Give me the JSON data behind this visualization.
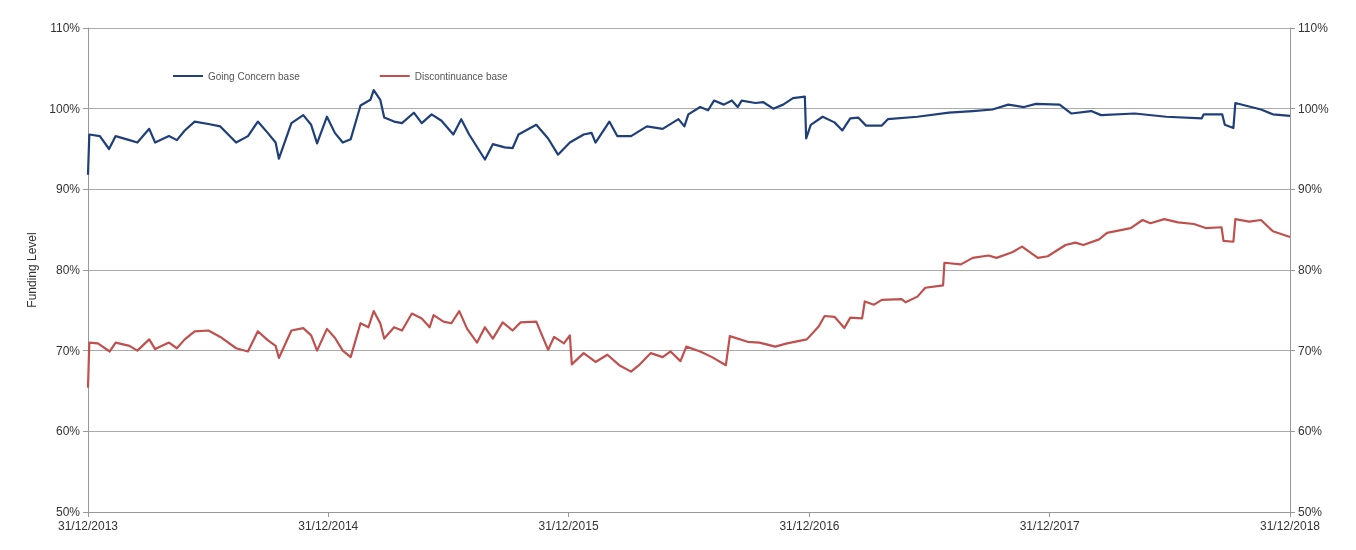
{
  "chart_data": {
    "type": "line",
    "ylabel": "Funding Level",
    "xlim": [
      "2013-12-31",
      "2018-12-31"
    ],
    "xticks": [
      {
        "value": "2013-12-31",
        "label": "31/12/2013"
      },
      {
        "value": "2014-12-31",
        "label": "31/12/2014"
      },
      {
        "value": "2015-12-31",
        "label": "31/12/2015"
      },
      {
        "value": "2016-12-31",
        "label": "31/12/2016"
      },
      {
        "value": "2017-12-31",
        "label": "31/12/2017"
      },
      {
        "value": "2018-12-31",
        "label": "31/12/2018"
      }
    ],
    "ylim": [
      50,
      110
    ],
    "yticks": [
      {
        "value": 50,
        "label": "50%"
      },
      {
        "value": 60,
        "label": "60%"
      },
      {
        "value": 70,
        "label": "70%"
      },
      {
        "value": 80,
        "label": "80%"
      },
      {
        "value": 90,
        "label": "90%"
      },
      {
        "value": 100,
        "label": "100%"
      },
      {
        "value": 110,
        "label": "110%"
      }
    ],
    "y2lim": [
      50,
      110
    ],
    "y2ticks": [
      {
        "value": 50,
        "label": "50%"
      },
      {
        "value": 60,
        "label": "60%"
      },
      {
        "value": 70,
        "label": "70%"
      },
      {
        "value": 80,
        "label": "80%"
      },
      {
        "value": 90,
        "label": "90%"
      },
      {
        "value": 100,
        "label": "100%"
      },
      {
        "value": 110,
        "label": "110%"
      }
    ],
    "grid": "y",
    "legend": "top left",
    "marker": "none",
    "line_style": "solid",
    "series": [
      {
        "name": "Going Concern base",
        "color": "#1f3f7a",
        "x": [
          "2013-12-31",
          "2014-01-02",
          "2014-01-18",
          "2014-02-01",
          "2014-02-11",
          "2014-03-04",
          "2014-03-16",
          "2014-04-03",
          "2014-04-12",
          "2014-05-03",
          "2014-05-15",
          "2014-05-27",
          "2014-06-11",
          "2014-07-02",
          "2014-07-20",
          "2014-08-13",
          "2014-08-31",
          "2014-09-15",
          "2014-09-30",
          "2014-10-12",
          "2014-10-17",
          "2014-11-05",
          "2014-11-23",
          "2014-12-05",
          "2014-12-14",
          "2014-12-29",
          "2015-01-10",
          "2015-01-22",
          "2015-02-03",
          "2015-02-18",
          "2015-03-05",
          "2015-03-10",
          "2015-03-20",
          "2015-03-26",
          "2015-04-10",
          "2015-04-22",
          "2015-05-10",
          "2015-05-22",
          "2015-06-06",
          "2015-06-21",
          "2015-07-09",
          "2015-07-21",
          "2015-08-02",
          "2015-08-26",
          "2015-09-07",
          "2015-09-25",
          "2015-10-07",
          "2015-10-16",
          "2015-11-12",
          "2015-11-30",
          "2015-12-15",
          "2016-01-02",
          "2016-01-23",
          "2016-02-04",
          "2016-02-10",
          "2016-03-02",
          "2016-03-14",
          "2016-04-04",
          "2016-04-28",
          "2016-05-22",
          "2016-06-15",
          "2016-06-24",
          "2016-06-30",
          "2016-07-18",
          "2016-07-30",
          "2016-08-08",
          "2016-08-23",
          "2016-09-04",
          "2016-09-13",
          "2016-09-19",
          "2016-10-10",
          "2016-10-22",
          "2016-11-06",
          "2016-11-21",
          "2016-12-06",
          "2016-12-24",
          "2016-12-26",
          "2017-01-02",
          "2017-01-20",
          "2017-02-07",
          "2017-02-19",
          "2017-03-03",
          "2017-03-15",
          "2017-03-27",
          "2017-04-20",
          "2017-04-29",
          "2017-06-13",
          "2017-07-31",
          "2017-09-05",
          "2017-10-05",
          "2017-10-29",
          "2017-11-22",
          "2017-12-10",
          "2018-01-15",
          "2018-02-02",
          "2018-03-04",
          "2018-03-19",
          "2018-05-09",
          "2018-06-26",
          "2018-08-19",
          "2018-08-22",
          "2018-09-19",
          "2018-09-23",
          "2018-10-06",
          "2018-10-09",
          "2018-11-17",
          "2018-12-05",
          "2018-12-31"
        ],
        "values": [
          91.8,
          96.8,
          96.6,
          95.0,
          96.6,
          96.1,
          95.8,
          97.5,
          95.8,
          96.6,
          96.1,
          97.3,
          98.4,
          98.1,
          97.8,
          95.8,
          96.6,
          98.4,
          97.0,
          95.8,
          93.8,
          98.2,
          99.2,
          98.0,
          95.7,
          99.0,
          97.0,
          95.8,
          96.2,
          100.4,
          101.1,
          102.3,
          101.1,
          98.9,
          98.4,
          98.2,
          99.5,
          98.2,
          99.3,
          98.5,
          96.8,
          98.7,
          96.8,
          93.7,
          95.6,
          95.2,
          95.1,
          96.8,
          98.0,
          96.3,
          94.3,
          95.8,
          96.8,
          97.0,
          95.8,
          98.4,
          96.6,
          96.6,
          97.8,
          97.5,
          98.7,
          97.8,
          99.3,
          100.2,
          99.8,
          101.0,
          100.5,
          101.0,
          100.2,
          101.0,
          100.7,
          100.8,
          100.0,
          100.5,
          101.3,
          101.5,
          96.3,
          98.0,
          99.0,
          98.3,
          97.3,
          98.8,
          98.9,
          97.9,
          97.9,
          98.7,
          99.0,
          99.5,
          99.7,
          99.9,
          100.5,
          100.2,
          100.6,
          100.5,
          99.4,
          99.7,
          99.2,
          99.4,
          99.0,
          98.8,
          99.3,
          99.3,
          98.0,
          97.6,
          100.7,
          99.9,
          99.3,
          99.1
        ]
      },
      {
        "name": "Discontinuance base",
        "color": "#c0504d",
        "x": [
          "2013-12-31",
          "2014-01-02",
          "2014-01-15",
          "2014-02-02",
          "2014-02-11",
          "2014-03-04",
          "2014-03-16",
          "2014-04-03",
          "2014-04-12",
          "2014-05-03",
          "2014-05-15",
          "2014-05-27",
          "2014-06-11",
          "2014-07-02",
          "2014-07-20",
          "2014-08-13",
          "2014-08-31",
          "2014-09-15",
          "2014-09-30",
          "2014-10-12",
          "2014-10-17",
          "2014-11-05",
          "2014-11-23",
          "2014-12-05",
          "2014-12-14",
          "2014-12-29",
          "2015-01-10",
          "2015-01-22",
          "2015-02-03",
          "2015-02-18",
          "2015-03-02",
          "2015-03-10",
          "2015-03-20",
          "2015-03-26",
          "2015-04-10",
          "2015-04-22",
          "2015-05-07",
          "2015-05-22",
          "2015-06-03",
          "2015-06-09",
          "2015-06-24",
          "2015-07-06",
          "2015-07-18",
          "2015-07-30",
          "2015-08-14",
          "2015-08-26",
          "2015-09-07",
          "2015-09-22",
          "2015-10-07",
          "2015-10-19",
          "2015-11-12",
          "2015-11-30",
          "2015-12-09",
          "2015-12-24",
          "2016-01-02",
          "2016-01-05",
          "2016-01-23",
          "2016-02-10",
          "2016-02-28",
          "2016-03-17",
          "2016-04-04",
          "2016-04-16",
          "2016-05-04",
          "2016-05-22",
          "2016-06-03",
          "2016-06-18",
          "2016-06-27",
          "2016-07-18",
          "2016-08-05",
          "2016-08-26",
          "2016-09-01",
          "2016-09-28",
          "2016-10-16",
          "2016-11-09",
          "2016-11-27",
          "2016-12-27",
          "2017-01-14",
          "2017-01-23",
          "2017-02-07",
          "2017-02-22",
          "2017-03-03",
          "2017-03-21",
          "2017-03-25",
          "2017-04-08",
          "2017-04-20",
          "2017-05-20",
          "2017-05-26",
          "2017-06-13",
          "2017-06-25",
          "2017-07-22",
          "2017-07-24",
          "2017-08-18",
          "2017-09-05",
          "2017-09-29",
          "2017-10-11",
          "2017-11-04",
          "2017-11-19",
          "2017-12-13",
          "2017-12-28",
          "2018-01-24",
          "2018-02-08",
          "2018-02-20",
          "2018-03-16",
          "2018-03-28",
          "2018-05-03",
          "2018-05-21",
          "2018-06-02",
          "2018-06-23",
          "2018-07-14",
          "2018-08-07",
          "2018-08-25",
          "2018-09-18",
          "2018-09-21",
          "2018-10-06",
          "2018-10-09",
          "2018-10-30",
          "2018-11-17",
          "2018-12-05",
          "2018-12-31"
        ],
        "values": [
          65.4,
          71.0,
          70.9,
          69.9,
          71.0,
          70.6,
          70.0,
          71.4,
          70.2,
          71.0,
          70.3,
          71.4,
          72.4,
          72.5,
          71.7,
          70.3,
          69.9,
          72.4,
          71.3,
          70.6,
          69.1,
          72.5,
          72.8,
          71.9,
          70.0,
          72.7,
          71.6,
          70.0,
          69.2,
          73.4,
          72.9,
          74.9,
          73.4,
          71.5,
          72.9,
          72.5,
          74.6,
          74.0,
          72.9,
          74.4,
          73.6,
          73.4,
          74.9,
          72.7,
          71.0,
          72.9,
          71.5,
          73.5,
          72.5,
          73.5,
          73.6,
          70.1,
          71.7,
          70.9,
          71.9,
          68.3,
          69.7,
          68.6,
          69.5,
          68.2,
          67.4,
          68.2,
          69.7,
          69.2,
          69.9,
          68.7,
          70.5,
          69.9,
          69.2,
          68.2,
          71.8,
          71.1,
          71.0,
          70.5,
          70.9,
          71.4,
          73.0,
          74.3,
          74.2,
          72.8,
          74.1,
          74.0,
          76.1,
          75.7,
          76.3,
          76.4,
          76.0,
          76.7,
          77.8,
          78.1,
          80.9,
          80.7,
          81.5,
          81.8,
          81.5,
          82.2,
          82.9,
          81.5,
          81.7,
          83.1,
          83.4,
          83.1,
          83.8,
          84.6,
          85.2,
          86.2,
          85.8,
          86.3,
          85.9,
          85.7,
          85.2,
          85.3,
          83.6,
          83.5,
          86.3,
          86.0,
          86.2,
          84.8,
          84.1
        ]
      }
    ]
  }
}
